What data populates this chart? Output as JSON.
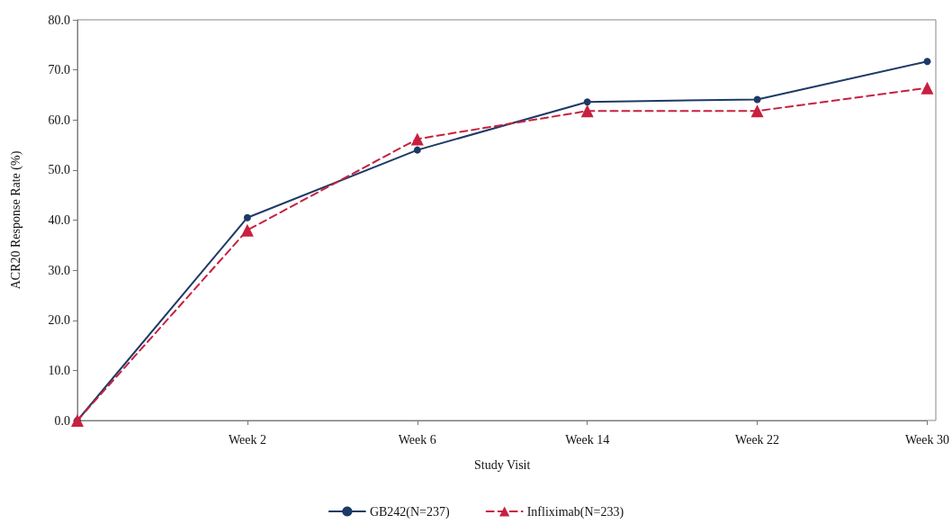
{
  "chart_data": {
    "type": "line",
    "xlabel": "Study Visit",
    "ylabel": "ACR20 Response Rate (%)",
    "categories": [
      null,
      "Week 2",
      "Week 6",
      "Week 14",
      "Week 22",
      "Week 30"
    ],
    "series": [
      {
        "name": "GB242(N=237)",
        "color": "#1d3a66",
        "marker": "circle",
        "line_style": "solid",
        "values": [
          0,
          40.5,
          54.0,
          63.6,
          64.1,
          71.7
        ]
      },
      {
        "name": "Infliximab(N=233)",
        "color": "#c8203f",
        "marker": "triangle",
        "line_style": "dashed",
        "values": [
          0,
          38.0,
          56.2,
          61.8,
          61.8,
          66.4
        ]
      }
    ],
    "ylim": [
      0,
      80
    ],
    "yticks": [
      {
        "value": 0,
        "label": "0.0"
      },
      {
        "value": 10,
        "label": "10.0"
      },
      {
        "value": 20,
        "label": "20.0"
      },
      {
        "value": 30,
        "label": "30.0"
      },
      {
        "value": 40,
        "label": "40.0"
      },
      {
        "value": 50,
        "label": "50.0"
      },
      {
        "value": 60,
        "label": "60.0"
      },
      {
        "value": 70,
        "label": "70.0"
      },
      {
        "value": 80,
        "label": "80.0"
      }
    ],
    "grid": false,
    "legend": "bottom"
  }
}
